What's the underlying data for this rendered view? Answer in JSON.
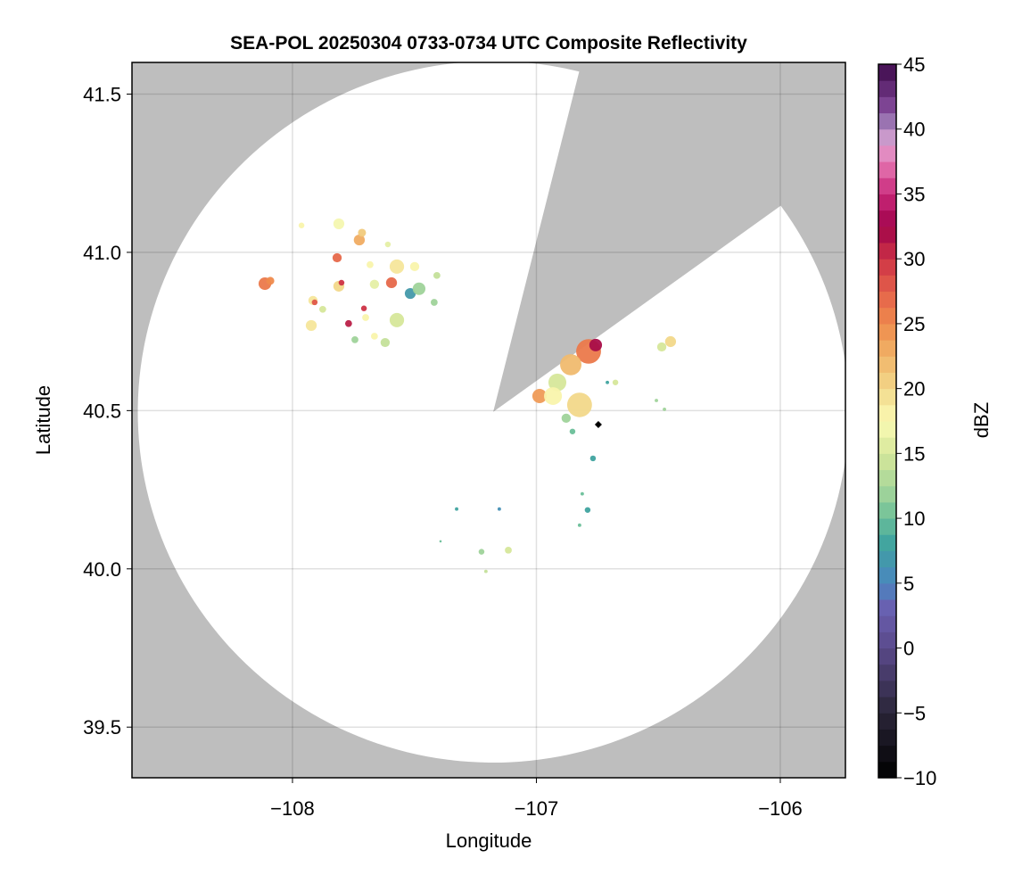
{
  "chart_data": {
    "type": "heatmap",
    "title": "SEA-POL 20250304 0733-0734 UTC Composite Reflectivity",
    "xlabel": "Longitude",
    "ylabel": "Latitude",
    "xlim": [
      -108.658,
      -105.733
    ],
    "ylim": [
      39.34,
      41.6
    ],
    "xticks": [
      -108,
      -107,
      -106
    ],
    "xtick_labels": [
      "−108",
      "−107",
      "−106"
    ],
    "yticks": [
      39.5,
      40.0,
      40.5,
      41.0,
      41.5
    ],
    "ytick_labels": [
      "39.5",
      "40.0",
      "40.5",
      "41.0",
      "41.5"
    ],
    "grid": true,
    "background_color": "#bebebe",
    "radar": {
      "lon": -107.177,
      "lat": 40.496,
      "range_km": 123,
      "blocked_azimuth_deg": [
        14,
        54
      ]
    },
    "marker": {
      "lon": -106.746,
      "lat": 40.456,
      "shape": "diamond",
      "color": "#000000"
    },
    "colorbar": {
      "label": "dBZ",
      "range": [
        -10,
        45
      ],
      "step": 1.25,
      "ticks": [
        -10,
        -5,
        0,
        5,
        10,
        15,
        20,
        25,
        30,
        35,
        40,
        45
      ],
      "tick_labels": [
        "−10",
        "−5",
        "0",
        "5",
        "10",
        "15",
        "20",
        "25",
        "30",
        "35",
        "40",
        "45"
      ],
      "stops": [
        [
          -10,
          "#000000"
        ],
        [
          -5,
          "#2a2538"
        ],
        [
          0,
          "#5a4a8a"
        ],
        [
          3,
          "#6a5fb0"
        ],
        [
          5,
          "#4a86c0"
        ],
        [
          8,
          "#3fa39f"
        ],
        [
          10,
          "#6abf99"
        ],
        [
          12,
          "#9fd39a"
        ],
        [
          15,
          "#d6e79a"
        ],
        [
          17.5,
          "#fbfbb5"
        ],
        [
          20,
          "#f2d88a"
        ],
        [
          22.5,
          "#f0b468"
        ],
        [
          25,
          "#ef8a4c"
        ],
        [
          27.5,
          "#e4604a"
        ],
        [
          30,
          "#cd3346"
        ],
        [
          32.5,
          "#a0034a"
        ],
        [
          35,
          "#c9287a"
        ],
        [
          37.5,
          "#e67ab5"
        ],
        [
          39,
          "#dca2d2"
        ],
        [
          40,
          "#a88ac0"
        ],
        [
          42,
          "#7a3f90"
        ],
        [
          45,
          "#3d0a4a"
        ]
      ]
    },
    "echoes": [
      {
        "lon": -108.113,
        "lat": 40.901,
        "dbz": 26,
        "size_km": 2.2
      },
      {
        "lon": -108.091,
        "lat": 40.91,
        "dbz": 25,
        "size_km": 1.4
      },
      {
        "lon": -107.963,
        "lat": 41.085,
        "dbz": 18,
        "size_km": 1.0
      },
      {
        "lon": -107.81,
        "lat": 41.09,
        "dbz": 17,
        "size_km": 1.9
      },
      {
        "lon": -107.817,
        "lat": 40.983,
        "dbz": 27,
        "size_km": 1.6
      },
      {
        "lon": -107.726,
        "lat": 41.039,
        "dbz": 23,
        "size_km": 1.9
      },
      {
        "lon": -107.715,
        "lat": 41.062,
        "dbz": 21,
        "size_km": 1.4
      },
      {
        "lon": -107.81,
        "lat": 40.893,
        "dbz": 20,
        "size_km": 1.9
      },
      {
        "lon": -107.799,
        "lat": 40.904,
        "dbz": 30,
        "size_km": 1.0
      },
      {
        "lon": -107.916,
        "lat": 40.848,
        "dbz": 19,
        "size_km": 1.6
      },
      {
        "lon": -107.909,
        "lat": 40.842,
        "dbz": 28,
        "size_km": 1.0
      },
      {
        "lon": -107.923,
        "lat": 40.769,
        "dbz": 19,
        "size_km": 1.9
      },
      {
        "lon": -107.876,
        "lat": 40.82,
        "dbz": 15,
        "size_km": 1.2
      },
      {
        "lon": -107.77,
        "lat": 40.775,
        "dbz": 31,
        "size_km": 1.2
      },
      {
        "lon": -107.7,
        "lat": 40.794,
        "dbz": 18,
        "size_km": 1.2
      },
      {
        "lon": -107.707,
        "lat": 40.823,
        "dbz": 30,
        "size_km": 1.0
      },
      {
        "lon": -107.682,
        "lat": 40.961,
        "dbz": 18,
        "size_km": 1.2
      },
      {
        "lon": -107.664,
        "lat": 40.899,
        "dbz": 16,
        "size_km": 1.6
      },
      {
        "lon": -107.594,
        "lat": 40.904,
        "dbz": 27,
        "size_km": 1.9
      },
      {
        "lon": -107.572,
        "lat": 40.955,
        "dbz": 19,
        "size_km": 2.5
      },
      {
        "lon": -107.517,
        "lat": 40.87,
        "dbz": 7,
        "size_km": 1.9
      },
      {
        "lon": -107.481,
        "lat": 40.885,
        "dbz": 12,
        "size_km": 2.2
      },
      {
        "lon": -107.572,
        "lat": 40.786,
        "dbz": 15,
        "size_km": 2.5
      },
      {
        "lon": -107.62,
        "lat": 40.715,
        "dbz": 14,
        "size_km": 1.6
      },
      {
        "lon": -107.664,
        "lat": 40.735,
        "dbz": 18,
        "size_km": 1.2
      },
      {
        "lon": -107.499,
        "lat": 40.955,
        "dbz": 18,
        "size_km": 1.6
      },
      {
        "lon": -107.408,
        "lat": 40.927,
        "dbz": 14,
        "size_km": 1.2
      },
      {
        "lon": -107.419,
        "lat": 40.842,
        "dbz": 12,
        "size_km": 1.2
      },
      {
        "lon": -107.744,
        "lat": 40.724,
        "dbz": 12,
        "size_km": 1.2
      },
      {
        "lon": -107.609,
        "lat": 41.025,
        "dbz": 16,
        "size_km": 1.0
      },
      {
        "lon": -106.786,
        "lat": 40.687,
        "dbz": 26,
        "size_km": 4.3
      },
      {
        "lon": -106.757,
        "lat": 40.707,
        "dbz": 32,
        "size_km": 2.2
      },
      {
        "lon": -106.859,
        "lat": 40.645,
        "dbz": 22,
        "size_km": 3.7
      },
      {
        "lon": -106.914,
        "lat": 40.589,
        "dbz": 15,
        "size_km": 3.1
      },
      {
        "lon": -106.987,
        "lat": 40.546,
        "dbz": 24,
        "size_km": 2.5
      },
      {
        "lon": -106.932,
        "lat": 40.546,
        "dbz": 18,
        "size_km": 3.1
      },
      {
        "lon": -106.823,
        "lat": 40.518,
        "dbz": 20,
        "size_km": 4.3
      },
      {
        "lon": -106.878,
        "lat": 40.476,
        "dbz": 12,
        "size_km": 1.6
      },
      {
        "lon": -106.852,
        "lat": 40.434,
        "dbz": 10,
        "size_km": 1.0
      },
      {
        "lon": -106.45,
        "lat": 40.718,
        "dbz": 20,
        "size_km": 1.9
      },
      {
        "lon": -106.486,
        "lat": 40.701,
        "dbz": 15,
        "size_km": 1.6
      },
      {
        "lon": -106.676,
        "lat": 40.589,
        "dbz": 15,
        "size_km": 1.0
      },
      {
        "lon": -106.709,
        "lat": 40.589,
        "dbz": 8,
        "size_km": 0.6
      },
      {
        "lon": -106.508,
        "lat": 40.532,
        "dbz": 12,
        "size_km": 0.6
      },
      {
        "lon": -106.475,
        "lat": 40.504,
        "dbz": 12,
        "size_km": 0.6
      },
      {
        "lon": -106.768,
        "lat": 40.349,
        "dbz": 8,
        "size_km": 1.0
      },
      {
        "lon": -106.812,
        "lat": 40.237,
        "dbz": 10,
        "size_km": 0.6
      },
      {
        "lon": -106.79,
        "lat": 40.186,
        "dbz": 8,
        "size_km": 1.0
      },
      {
        "lon": -106.823,
        "lat": 40.138,
        "dbz": 10,
        "size_km": 0.6
      },
      {
        "lon": -107.327,
        "lat": 40.189,
        "dbz": 8,
        "size_km": 0.6
      },
      {
        "lon": -107.152,
        "lat": 40.189,
        "dbz": 6,
        "size_km": 0.6
      },
      {
        "lon": -107.393,
        "lat": 40.087,
        "dbz": 10,
        "size_km": 0.4
      },
      {
        "lon": -107.225,
        "lat": 40.054,
        "dbz": 12,
        "size_km": 1.0
      },
      {
        "lon": -107.115,
        "lat": 40.059,
        "dbz": 15,
        "size_km": 1.2
      },
      {
        "lon": -107.207,
        "lat": 39.992,
        "dbz": 14,
        "size_km": 0.6
      }
    ]
  }
}
